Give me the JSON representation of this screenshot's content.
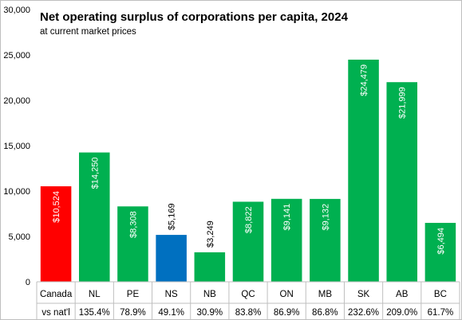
{
  "chart_data": {
    "type": "bar",
    "title": "Net operating surplus of corporations per capita, 2024",
    "subtitle": "at current market prices",
    "categories": [
      "Canada",
      "NL",
      "PE",
      "NS",
      "NB",
      "QC",
      "ON",
      "MB",
      "SK",
      "AB",
      "BC"
    ],
    "values": [
      10524,
      14250,
      8308,
      5169,
      3249,
      8822,
      9141,
      9132,
      24479,
      21999,
      6494
    ],
    "data_labels": [
      "$10,524",
      "$14,250",
      "$8,308",
      "$5,169",
      "$3,249",
      "$8,822",
      "$9,141",
      "$9,132",
      "$24,479",
      "$21,999",
      "$6,494"
    ],
    "bar_colors": [
      "#ff0000",
      "#00b050",
      "#00b050",
      "#0070c0",
      "#00b050",
      "#00b050",
      "#00b050",
      "#00b050",
      "#00b050",
      "#00b050",
      "#00b050"
    ],
    "row2_label": "vs nat'l",
    "row2_values": [
      "135.4%",
      "78.9%",
      "49.1%",
      "30.9%",
      "83.8%",
      "86.9%",
      "86.8%",
      "232.6%",
      "209.0%",
      "61.7%"
    ],
    "ylim": [
      0,
      30000
    ],
    "yticks": [
      0,
      5000,
      10000,
      15000,
      20000,
      25000,
      30000
    ],
    "ytick_labels": [
      "0",
      "5,000",
      "10,000",
      "15,000",
      "20,000",
      "25,000",
      "30,000"
    ],
    "grid": false,
    "legend": "none"
  }
}
